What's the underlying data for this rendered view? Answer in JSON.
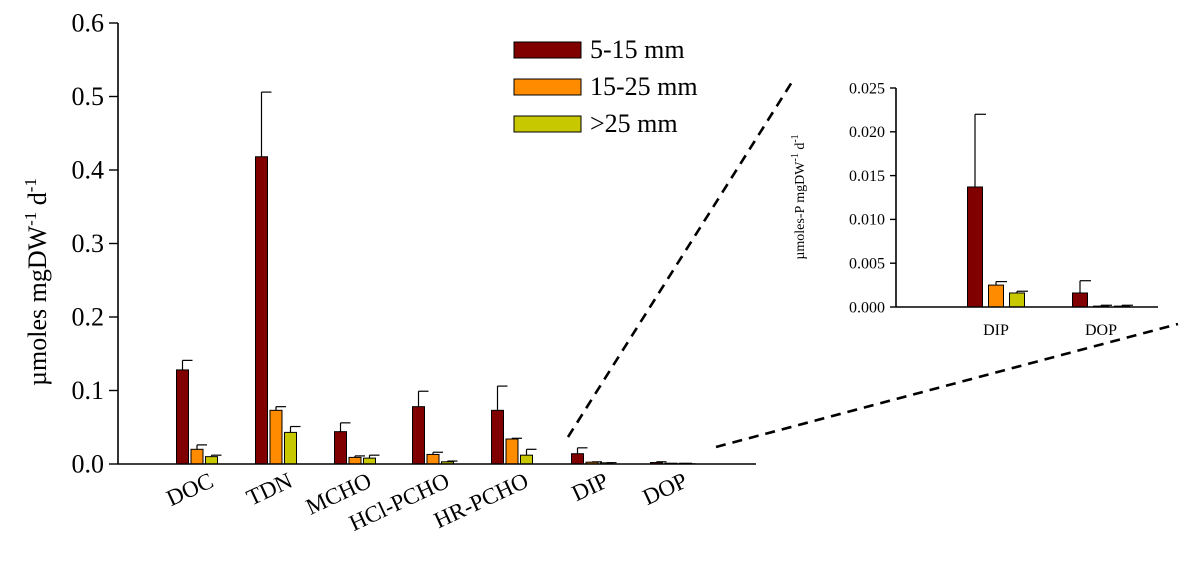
{
  "chart_data": [
    {
      "id": "main",
      "type": "bar",
      "ylabel": "µmoles mgDW",
      "ylabel_sup1": "-1",
      "ylabel_mid": " d",
      "ylabel_sup2": "-1",
      "ylim": [
        0,
        0.6
      ],
      "yticks": [
        "0.0",
        "0.1",
        "0.2",
        "0.3",
        "0.4",
        "0.5",
        "0.6"
      ],
      "grid": false,
      "legend_position": "top-center",
      "categories": [
        "DOC",
        "TDN",
        "MCHO",
        "HCl-PCHO",
        "HR-PCHO",
        "DIP",
        "DOP"
      ],
      "series": [
        {
          "name": "5-15 mm",
          "color": "#800000",
          "values": [
            0.128,
            0.418,
            0.044,
            0.078,
            0.073,
            0.014,
            0.002
          ],
          "errors": [
            0.013,
            0.088,
            0.012,
            0.021,
            0.033,
            0.008,
            0.001
          ]
        },
        {
          "name": "15-25 mm",
          "color": "#ff8c00",
          "values": [
            0.02,
            0.073,
            0.009,
            0.013,
            0.034,
            0.0025,
            0.0001
          ],
          "errors": [
            0.006,
            0.005,
            0.002,
            0.003,
            0.001,
            0.0004,
            0.0001
          ]
        },
        {
          "name": ">25 mm",
          "color": "#c8c800",
          "values": [
            0.01,
            0.043,
            0.008,
            0.003,
            0.012,
            0.0016,
            0.0001
          ],
          "errors": [
            0.002,
            0.008,
            0.004,
            0.001,
            0.008,
            0.0002,
            0.0001
          ]
        }
      ]
    },
    {
      "id": "inset",
      "type": "bar",
      "ylabel": "µmoles-P mgDW",
      "ylabel_sup1": "-1",
      "ylabel_mid": " d",
      "ylabel_sup2": "-1",
      "ylim": [
        0,
        0.025
      ],
      "yticks": [
        "0.000",
        "0.005",
        "0.010",
        "0.015",
        "0.020",
        "0.025"
      ],
      "grid": false,
      "categories": [
        "DIP",
        "DOP"
      ],
      "series": [
        {
          "name": "5-15 mm",
          "color": "#800000",
          "values": [
            0.0137,
            0.0016
          ],
          "errors": [
            0.0083,
            0.0014
          ]
        },
        {
          "name": "15-25 mm",
          "color": "#ff8c00",
          "values": [
            0.0025,
            0.0001
          ],
          "errors": [
            0.0004,
            0.0001
          ]
        },
        {
          "name": ">25 mm",
          "color": "#c8c800",
          "values": [
            0.0016,
            0.0001
          ],
          "errors": [
            0.0002,
            0.0001
          ]
        }
      ]
    }
  ]
}
